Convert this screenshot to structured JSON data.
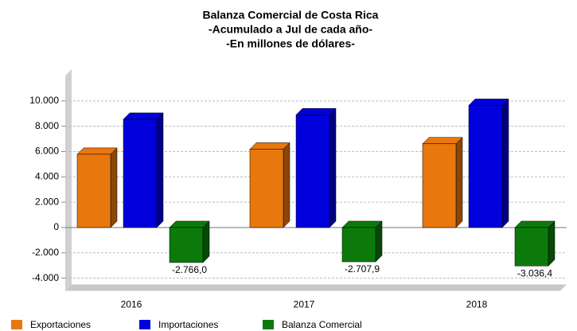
{
  "chart_data": {
    "type": "bar3d",
    "title": "Balanza Comercial de Costa Rica",
    "subtitle": [
      "-Acumulado a Jul de cada año-",
      "-En millones de dólares-"
    ],
    "categories": [
      "2016",
      "2017",
      "2018"
    ],
    "series": [
      {
        "name": "Exportaciones",
        "color": "#e8770e",
        "values": [
          5784,
          6192,
          6614
        ]
      },
      {
        "name": "Importaciones",
        "color": "#0000dd",
        "values": [
          8550,
          8900,
          9650
        ]
      },
      {
        "name": "Balanza Comercial",
        "color": "#0b7a0b",
        "values": [
          -2766.0,
          -2707.9,
          -3036.4
        ],
        "value_labels": [
          "-2.766,0",
          "-2.707,9",
          "-3.036,4"
        ]
      }
    ],
    "ylim": [
      -5000,
      12000
    ],
    "yticks": [
      {
        "value": 10000,
        "label": "10.000"
      },
      {
        "value": 8000,
        "label": "8.000"
      },
      {
        "value": 6000,
        "label": "6.000"
      },
      {
        "value": 4000,
        "label": "4.000"
      },
      {
        "value": 2000,
        "label": "2.000"
      },
      0,
      {
        "value": -2000,
        "label": "-2.000"
      },
      {
        "value": -4000,
        "label": "-4.000"
      }
    ],
    "grid": true,
    "legend": "bottom-left"
  }
}
